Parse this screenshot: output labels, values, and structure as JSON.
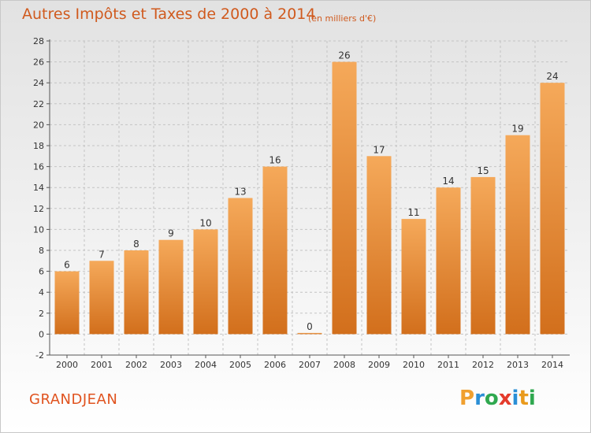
{
  "header": {
    "title": "Autres Impôts et Taxes de 2000 à 2014",
    "unit": "(en milliers d'€)"
  },
  "footer": {
    "commune": "GRANDJEAN",
    "logo_letters": [
      "P",
      "r",
      "o",
      "x",
      "i",
      "t",
      "i"
    ],
    "logo_colors": [
      "#f0a030",
      "#2b8fd6",
      "#2fa84f",
      "#e43b2c",
      "#2b8fd6",
      "#e99a1c",
      "#2fa84f"
    ]
  },
  "colors": {
    "bar_light": "#f5a95a",
    "bar_dark": "#d26f1c",
    "text_accent": "#d05a1e",
    "axis": "#555555",
    "grid": "#c4c4c4"
  },
  "chart_data": {
    "type": "bar",
    "title": "Autres Impôts et Taxes de 2000 à 2014",
    "subtitle": "(en milliers d'€)",
    "xlabel": "",
    "ylabel": "",
    "categories": [
      "2000",
      "2001",
      "2002",
      "2003",
      "2004",
      "2005",
      "2006",
      "2007",
      "2008",
      "2009",
      "2010",
      "2011",
      "2012",
      "2013",
      "2014"
    ],
    "values": [
      6,
      7,
      8,
      9,
      10,
      13,
      16,
      0,
      26,
      17,
      11,
      14,
      15,
      19,
      24
    ],
    "ylim": [
      -2,
      28
    ],
    "yticks": [
      -2,
      0,
      2,
      4,
      6,
      8,
      10,
      12,
      14,
      16,
      18,
      20,
      22,
      24,
      26,
      28
    ],
    "grid": true,
    "legend": "none"
  }
}
